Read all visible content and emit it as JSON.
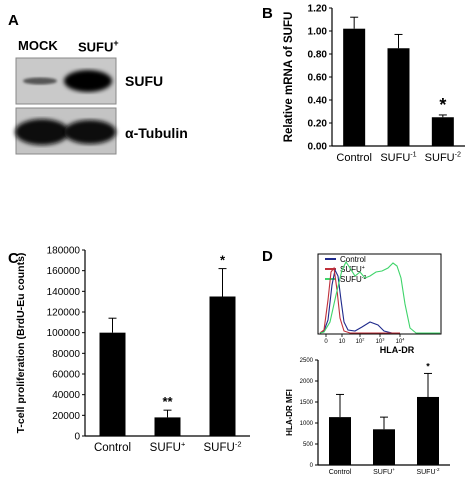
{
  "panels": {
    "A": "A",
    "B": "B",
    "C": "C",
    "D": "D"
  },
  "blot": {
    "lane1": "MOCK",
    "lane2": "SUFU",
    "lane2_sup": "+",
    "band1": "SUFU",
    "band2": "α-Tubulin"
  },
  "colors": {
    "bar": "#000000",
    "control": "#1f2a8c",
    "sufu_plus": "#c0303a",
    "sufu_minus2": "#3fd46a"
  },
  "chart_data": [
    {
      "id": "B",
      "type": "bar",
      "categories": [
        "Control",
        "SUFU",
        "SUFU"
      ],
      "category_sups": [
        "",
        "-1",
        "-2"
      ],
      "values": [
        1.02,
        0.85,
        0.25
      ],
      "errors": [
        0.1,
        0.12,
        0.02
      ],
      "annotations": [
        "",
        "",
        "*"
      ],
      "ylabel": "Relative mRNA of SUFU",
      "ylim": [
        0,
        1.2
      ],
      "yticks": [
        "0.00",
        "0.20",
        "0.40",
        "0.60",
        "0.80",
        "1.00",
        "1.20"
      ]
    },
    {
      "id": "C",
      "type": "bar",
      "categories": [
        "Control",
        "SUFU",
        "SUFU"
      ],
      "category_sups": [
        "",
        "+",
        "-2"
      ],
      "values": [
        100000,
        18000,
        135000
      ],
      "errors": [
        14000,
        7000,
        27000
      ],
      "annotations": [
        "",
        "**",
        "*"
      ],
      "ylabel": "T-cell proliferation  (BrdU-Eu counts)",
      "ylim": [
        0,
        180000
      ],
      "yticks": [
        "0",
        "20000",
        "40000",
        "60000",
        "80000",
        "100000",
        "120000",
        "140000",
        "160000",
        "180000"
      ]
    },
    {
      "id": "D-histogram",
      "type": "line",
      "xlabel": "HLA-DR",
      "xticks": [
        "0",
        "10",
        "10",
        "10",
        "10"
      ],
      "xtick_sups": [
        "",
        "",
        "2",
        "3",
        "4"
      ],
      "series": [
        {
          "name": "Control",
          "sup": "",
          "color": "#1f2a8c"
        },
        {
          "name": "SUFU",
          "sup": "+",
          "color": "#c0303a"
        },
        {
          "name": "SUFU",
          "sup": "-2",
          "color": "#3fd46a"
        }
      ]
    },
    {
      "id": "D-mfi",
      "type": "bar",
      "categories": [
        "Control",
        "SUFU",
        "SUFU"
      ],
      "category_sups": [
        "",
        "+",
        "-2"
      ],
      "values": [
        1140,
        850,
        1620
      ],
      "errors": [
        540,
        290,
        560
      ],
      "annotations": [
        "",
        "",
        "*"
      ],
      "ylabel": "HLA-DR MFI",
      "ylim": [
        0,
        2500
      ],
      "yticks": [
        "0",
        "500",
        "1000",
        "1500",
        "2000",
        "2500"
      ]
    }
  ]
}
